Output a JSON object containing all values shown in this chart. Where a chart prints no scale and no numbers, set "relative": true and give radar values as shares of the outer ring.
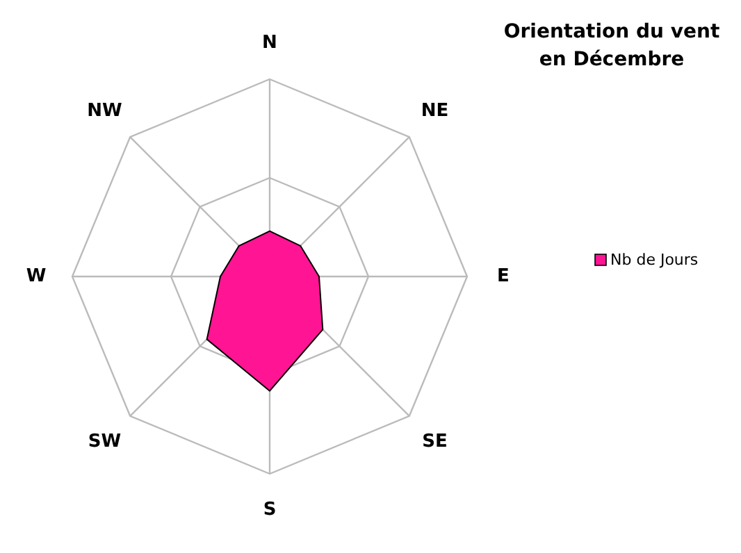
{
  "chart_data": {
    "type": "radar",
    "title": "Orientation du vent en Décembre",
    "relative": true,
    "categories": [
      "N",
      "NE",
      "E",
      "SE",
      "S",
      "SW",
      "W",
      "NW"
    ],
    "series": [
      {
        "name": "Nb de Jours",
        "color": "#ff1493",
        "values": [
          0.23,
          0.22,
          0.25,
          0.38,
          0.58,
          0.45,
          0.25,
          0.22
        ]
      }
    ],
    "legend": "right"
  }
}
